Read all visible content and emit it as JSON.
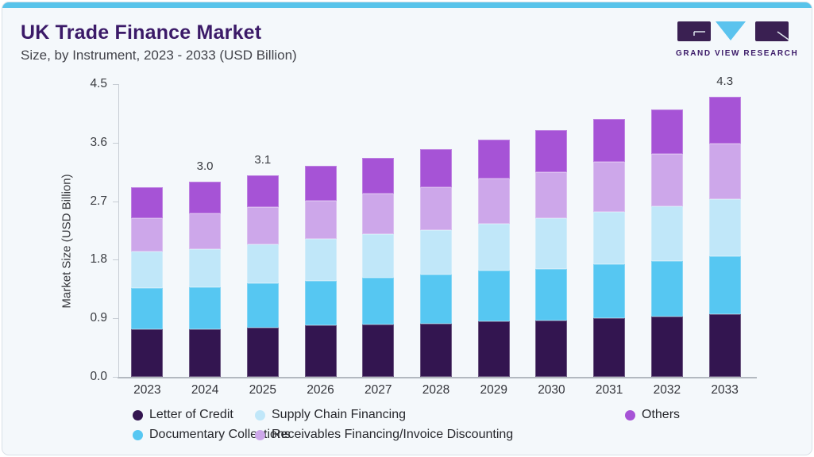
{
  "header": {
    "title": "UK Trade Finance Market",
    "subtitle": "Size, by Instrument, 2023 - 2033 (USD Billion)"
  },
  "logo": {
    "text": "GRAND VIEW RESEARCH",
    "mark_dark": "#3a2052",
    "mark_blue": "#5bc3ee"
  },
  "colors": {
    "accent": "#58c3ea",
    "brand": "#3b1a68",
    "card_bg": "#f4f8fb",
    "axis_line": "#c7cdd4",
    "baseline": "#b3b9c0",
    "text": "#3a3c41"
  },
  "chart_data": {
    "type": "bar",
    "stacked": true,
    "title": "UK Trade Finance Market Size, by Instrument, 2023 - 2033 (USD Billion)",
    "xlabel": "",
    "ylabel": "Market Size (USD Billion)",
    "ylim": [
      0,
      4.5
    ],
    "yticks": [
      "0.0",
      "0.9",
      "1.8",
      "2.7",
      "3.6",
      "4.5"
    ],
    "grid": false,
    "legend_position": "bottom",
    "categories": [
      "2023",
      "2024",
      "2025",
      "2026",
      "2027",
      "2028",
      "2029",
      "2030",
      "2031",
      "2032",
      "2033"
    ],
    "series": [
      {
        "name": "Letter of Credit",
        "color": "#331550",
        "values": [
          0.73,
          0.73,
          0.76,
          0.79,
          0.8,
          0.82,
          0.85,
          0.86,
          0.9,
          0.93,
          0.96
        ]
      },
      {
        "name": "Documentary Collections",
        "color": "#56c7f2",
        "values": [
          0.64,
          0.65,
          0.68,
          0.69,
          0.72,
          0.75,
          0.78,
          0.8,
          0.83,
          0.85,
          0.89
        ]
      },
      {
        "name": "Supply Chain Financing",
        "color": "#c0e7f9",
        "values": [
          0.56,
          0.58,
          0.6,
          0.64,
          0.67,
          0.69,
          0.72,
          0.78,
          0.81,
          0.84,
          0.88
        ]
      },
      {
        "name": "Receivables Financing/Invoice Discounting",
        "color": "#cda7ea",
        "values": [
          0.51,
          0.55,
          0.57,
          0.59,
          0.63,
          0.65,
          0.7,
          0.71,
          0.77,
          0.81,
          0.85
        ]
      },
      {
        "name": "Others",
        "color": "#a653d6",
        "values": [
          0.48,
          0.49,
          0.49,
          0.53,
          0.54,
          0.59,
          0.6,
          0.64,
          0.65,
          0.68,
          0.72
        ]
      }
    ],
    "bar_total_labels": {
      "2024": "3.0",
      "2025": "3.1",
      "2033": "4.3"
    },
    "approx_totals": [
      2.9,
      3.0,
      3.1,
      3.2,
      3.4,
      3.5,
      3.7,
      3.8,
      4.0,
      4.1,
      4.3
    ],
    "legend_rows": [
      [
        "Letter of Credit",
        "Supply Chain Financing",
        "Others"
      ],
      [
        "Documentary Collections",
        "Receivables Financing/Invoice Discounting"
      ]
    ]
  }
}
